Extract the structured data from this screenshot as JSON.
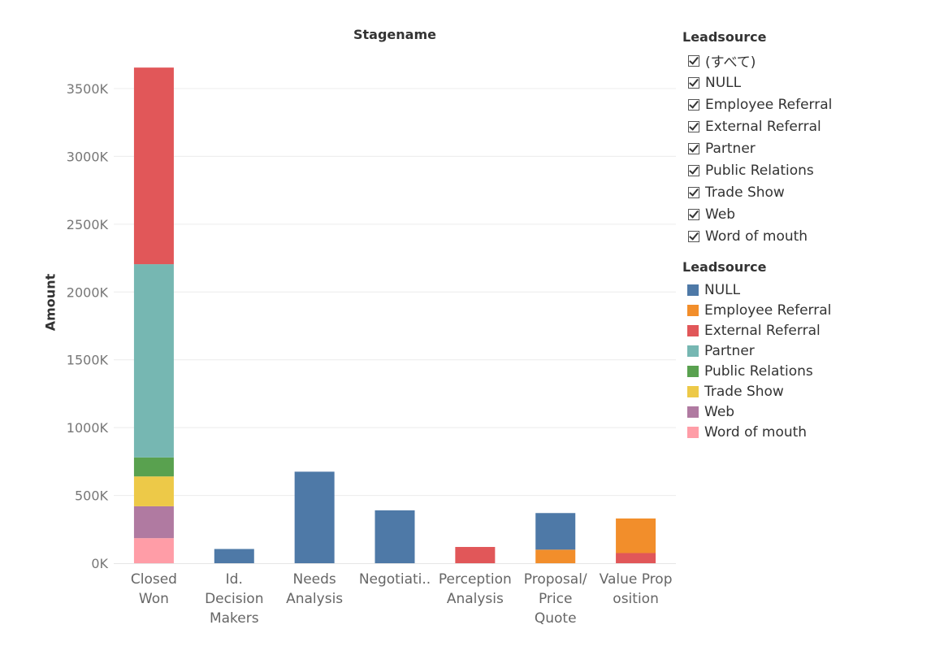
{
  "chart_data": {
    "type": "bar",
    "title": "Stagename",
    "ylabel": "Amount",
    "xlabel": "",
    "ylim": [
      0,
      3800
    ],
    "yticks": [
      0,
      500,
      1000,
      1500,
      2000,
      2500,
      3000,
      3500
    ],
    "ytick_labels": [
      "0K",
      "500K",
      "1000K",
      "1500K",
      "2000K",
      "2500K",
      "3000K",
      "3500K"
    ],
    "categories": [
      "Closed Won",
      "Id. Decision Makers",
      "Needs Analysis",
      "Negotiati..",
      "Perception Analysis",
      "Proposal/ Price Quote",
      "Value Proposition"
    ],
    "category_label_lines": [
      [
        "Closed",
        "Won"
      ],
      [
        "Id.",
        "Decision",
        "Makers"
      ],
      [
        "Needs",
        "Analysis"
      ],
      [
        "Negotiati.."
      ],
      [
        "Perception",
        "Analysis"
      ],
      [
        "Proposal/",
        "Price",
        "Quote"
      ],
      [
        "Value Prop",
        "osition"
      ]
    ],
    "stack_order": [
      "Word of mouth",
      "Web",
      "Trade Show",
      "Public Relations",
      "Partner",
      "External Referral",
      "Employee Referral",
      "NULL"
    ],
    "series": [
      {
        "name": "NULL",
        "color": "#4E79A7",
        "values": [
          0,
          105,
          675,
          390,
          0,
          270,
          0
        ]
      },
      {
        "name": "Employee Referral",
        "color": "#F28E2B",
        "values": [
          0,
          0,
          0,
          0,
          0,
          100,
          255
        ]
      },
      {
        "name": "External Referral",
        "color": "#E15759",
        "values": [
          1450,
          0,
          0,
          0,
          120,
          0,
          75
        ]
      },
      {
        "name": "Partner",
        "color": "#76B7B2",
        "values": [
          1425,
          0,
          0,
          0,
          0,
          0,
          0
        ]
      },
      {
        "name": "Public Relations",
        "color": "#59A14F",
        "values": [
          140,
          0,
          0,
          0,
          0,
          0,
          0
        ]
      },
      {
        "name": "Trade Show",
        "color": "#EDC948",
        "values": [
          220,
          0,
          0,
          0,
          0,
          0,
          0
        ]
      },
      {
        "name": "Web",
        "color": "#B07AA1",
        "values": [
          235,
          0,
          0,
          0,
          0,
          0,
          0
        ]
      },
      {
        "name": "Word of mouth",
        "color": "#FF9DA7",
        "values": [
          185,
          0,
          0,
          0,
          0,
          0,
          0
        ]
      }
    ],
    "grid": true,
    "legend_position": "right"
  },
  "filter": {
    "title": "Leadsource",
    "items": [
      "(すべて)",
      "NULL",
      "Employee Referral",
      "External Referral",
      "Partner",
      "Public Relations",
      "Trade Show",
      "Web",
      "Word of mouth"
    ]
  },
  "legend": {
    "title": "Leadsource",
    "items": [
      {
        "label": "NULL",
        "color": "#4E79A7"
      },
      {
        "label": "Employee Referral",
        "color": "#F28E2B"
      },
      {
        "label": "External Referral",
        "color": "#E15759"
      },
      {
        "label": "Partner",
        "color": "#76B7B2"
      },
      {
        "label": "Public Relations",
        "color": "#59A14F"
      },
      {
        "label": "Trade Show",
        "color": "#EDC948"
      },
      {
        "label": "Web",
        "color": "#B07AA1"
      },
      {
        "label": "Word of mouth",
        "color": "#FF9DA7"
      }
    ]
  }
}
